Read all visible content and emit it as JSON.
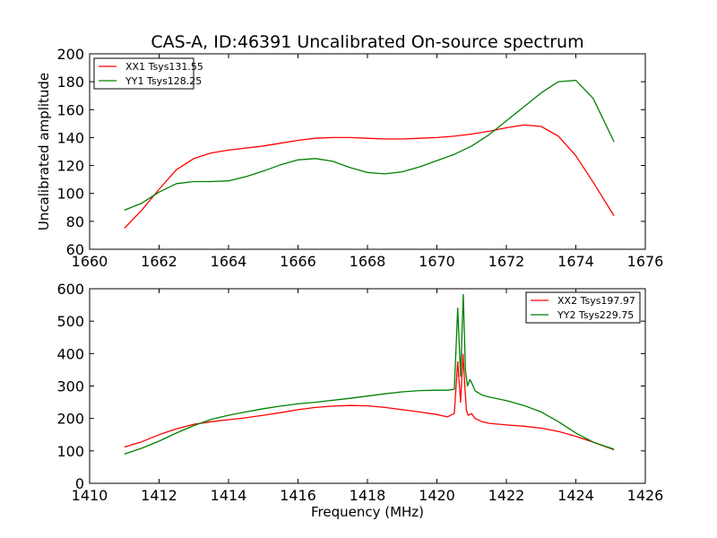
{
  "chart_data": [
    {
      "type": "line",
      "title": "CAS-A, ID:46391 Uncalibrated On-source spectrum",
      "xlabel": "",
      "ylabel": "Uncalibrated amplitude",
      "xlim": [
        1660,
        1676
      ],
      "ylim": [
        60,
        200
      ],
      "xticks": [
        "1660",
        "1662",
        "1664",
        "1666",
        "1668",
        "1670",
        "1672",
        "1674",
        "1676"
      ],
      "yticks": [
        "60",
        "80",
        "100",
        "120",
        "140",
        "160",
        "180",
        "200"
      ],
      "legend_position": "top-left",
      "series": [
        {
          "name": "XX1 Tsys131.55",
          "color": "#ff0000",
          "x": [
            1661.0,
            1661.5,
            1662.0,
            1662.5,
            1663.0,
            1663.5,
            1664.0,
            1664.5,
            1665.0,
            1665.5,
            1666.0,
            1666.5,
            1667.0,
            1667.5,
            1668.0,
            1668.5,
            1669.0,
            1669.5,
            1670.0,
            1670.5,
            1671.0,
            1671.5,
            1672.0,
            1672.5,
            1673.0,
            1673.5,
            1674.0,
            1674.5,
            1675.1
          ],
          "y": [
            75,
            88,
            103,
            117,
            125,
            129,
            131,
            132.5,
            134,
            136,
            138,
            139.5,
            140,
            140,
            139.5,
            139,
            139,
            139.5,
            140,
            141,
            142.5,
            144.5,
            147,
            149,
            148,
            141,
            127,
            108,
            84
          ]
        },
        {
          "name": "YY1 Tsys128.25",
          "color": "#008000",
          "x": [
            1661.0,
            1661.5,
            1662.0,
            1662.5,
            1663.0,
            1663.5,
            1664.0,
            1664.5,
            1665.0,
            1665.5,
            1666.0,
            1666.5,
            1667.0,
            1667.5,
            1668.0,
            1668.5,
            1669.0,
            1669.5,
            1670.0,
            1670.5,
            1671.0,
            1671.5,
            1672.0,
            1672.5,
            1673.0,
            1673.5,
            1674.0,
            1674.5,
            1675.1
          ],
          "y": [
            88,
            93,
            101,
            107,
            108.5,
            108.5,
            109,
            112,
            116,
            120.5,
            124,
            125,
            123,
            118.5,
            115,
            114,
            115.5,
            119,
            123.5,
            128,
            134,
            142,
            152,
            162,
            172,
            180,
            181,
            168,
            137
          ]
        }
      ]
    },
    {
      "type": "line",
      "title": "",
      "xlabel": "Frequency (MHz)",
      "ylabel": "",
      "xlim": [
        1410,
        1426
      ],
      "ylim": [
        0,
        600
      ],
      "xticks": [
        "1410",
        "1412",
        "1414",
        "1416",
        "1418",
        "1420",
        "1422",
        "1424",
        "1426"
      ],
      "yticks": [
        "0",
        "100",
        "200",
        "300",
        "400",
        "500",
        "600"
      ],
      "legend_position": "top-right",
      "series": [
        {
          "name": "XX2 Tsys197.97",
          "color": "#ff0000",
          "x": [
            1411.0,
            1411.5,
            1412.0,
            1412.5,
            1413.0,
            1413.5,
            1414.0,
            1414.5,
            1415.0,
            1415.5,
            1416.0,
            1416.5,
            1417.0,
            1417.5,
            1418.0,
            1418.5,
            1419.0,
            1419.5,
            1420.0,
            1420.3,
            1420.5,
            1420.6,
            1420.68,
            1420.75,
            1420.8,
            1420.85,
            1420.9,
            1421.0,
            1421.1,
            1421.3,
            1421.5,
            1422.0,
            1422.5,
            1423.0,
            1423.5,
            1424.0,
            1424.5,
            1425.1
          ],
          "y": [
            112,
            128,
            150,
            168,
            182,
            190,
            196,
            202,
            210,
            218,
            227,
            234,
            238,
            240,
            239,
            234,
            227,
            220,
            212,
            205,
            215,
            375,
            250,
            398,
            305,
            225,
            210,
            215,
            200,
            190,
            185,
            180,
            176,
            170,
            160,
            145,
            127,
            103
          ]
        },
        {
          "name": "YY2 Tsys229.75",
          "color": "#008000",
          "x": [
            1411.0,
            1411.5,
            1412.0,
            1412.5,
            1413.0,
            1413.5,
            1414.0,
            1414.5,
            1415.0,
            1415.5,
            1416.0,
            1416.5,
            1417.0,
            1417.5,
            1418.0,
            1418.5,
            1419.0,
            1419.5,
            1420.0,
            1420.3,
            1420.5,
            1420.6,
            1420.68,
            1420.76,
            1420.82,
            1420.88,
            1420.95,
            1421.0,
            1421.1,
            1421.3,
            1421.5,
            1422.0,
            1422.5,
            1423.0,
            1423.5,
            1424.0,
            1424.5,
            1425.1
          ],
          "y": [
            90,
            108,
            130,
            155,
            178,
            197,
            210,
            220,
            230,
            238,
            245,
            250,
            256,
            262,
            269,
            276,
            282,
            286,
            287,
            287,
            290,
            540,
            330,
            582,
            350,
            300,
            320,
            310,
            285,
            272,
            266,
            255,
            240,
            220,
            190,
            155,
            127,
            105
          ]
        }
      ]
    }
  ]
}
